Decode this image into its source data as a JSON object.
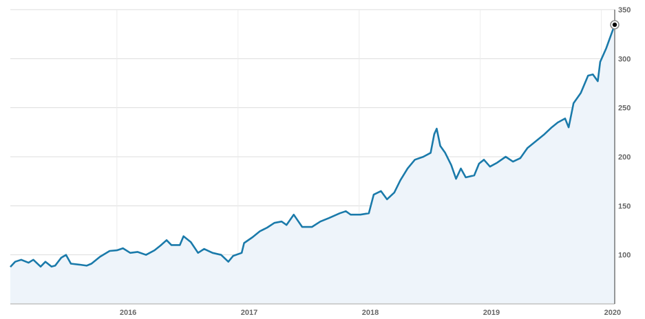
{
  "chart_data": {
    "type": "area",
    "title": "",
    "xlabel": "",
    "ylabel": "",
    "xlim": [
      2015.12,
      2020.11
    ],
    "ylim": [
      50,
      350
    ],
    "y_ticks": [
      100,
      150,
      200,
      250,
      300,
      350
    ],
    "x_ticks": [
      2016,
      2017,
      2018,
      2019,
      2020
    ],
    "y_axis_position": "right",
    "grid": true,
    "colors": {
      "line": "#1a7aaa",
      "fill": "#eef4fa",
      "grid": "#dcdcdc",
      "marker": "#000000"
    },
    "series": [
      {
        "x": [
          2015.12,
          2015.16,
          2015.21,
          2015.27,
          2015.31,
          2015.37,
          2015.41,
          2015.46,
          2015.49,
          2015.54,
          2015.58,
          2015.62,
          2015.69,
          2015.75,
          2015.79,
          2015.86,
          2015.94,
          2016.0,
          2016.05,
          2016.11,
          2016.17,
          2016.24,
          2016.31,
          2016.36,
          2016.41,
          2016.45,
          2016.52,
          2016.55,
          2016.61,
          2016.67,
          2016.72,
          2016.79,
          2016.86,
          2016.92,
          2016.96,
          2017.03,
          2017.05,
          2017.12,
          2017.18,
          2017.24,
          2017.3,
          2017.36,
          2017.4,
          2017.46,
          2017.53,
          2017.61,
          2017.68,
          2017.75,
          2017.84,
          2017.89,
          2017.93,
          2018.01,
          2018.08,
          2018.12,
          2018.18,
          2018.23,
          2018.29,
          2018.34,
          2018.4,
          2018.46,
          2018.53,
          2018.59,
          2018.62,
          2018.64,
          2018.67,
          2018.71,
          2018.76,
          2018.8,
          2018.84,
          2018.88,
          2018.95,
          2018.99,
          2019.03,
          2019.08,
          2019.14,
          2019.21,
          2019.27,
          2019.33,
          2019.39,
          2019.46,
          2019.53,
          2019.59,
          2019.64,
          2019.7,
          2019.73,
          2019.77,
          2019.83,
          2019.89,
          2019.93,
          2019.97,
          2019.99,
          2020.04,
          2020.11
        ],
        "y": [
          87.7,
          93,
          95,
          92,
          95,
          88,
          93,
          88,
          89,
          97,
          100,
          91,
          90,
          89,
          91,
          98,
          104,
          104.6,
          106.7,
          102,
          103,
          100,
          104.6,
          109.5,
          115,
          110,
          110,
          119,
          113,
          102,
          106,
          102,
          100,
          93,
          99,
          102,
          112,
          118,
          124,
          127.7,
          132.6,
          134,
          130.5,
          141,
          128.4,
          128.4,
          134,
          137.5,
          142.4,
          144.5,
          141,
          141,
          142.4,
          161.4,
          165,
          156.6,
          163.5,
          176,
          188,
          197,
          200,
          204,
          223,
          228.7,
          211,
          204,
          191.5,
          177.5,
          188,
          179,
          181,
          193,
          197,
          190,
          194,
          200,
          195,
          198.5,
          209,
          216,
          223,
          230,
          235,
          239,
          230,
          254.6,
          265,
          282.7,
          284,
          277,
          296.7,
          310.7,
          334.6
        ]
      }
    ]
  }
}
